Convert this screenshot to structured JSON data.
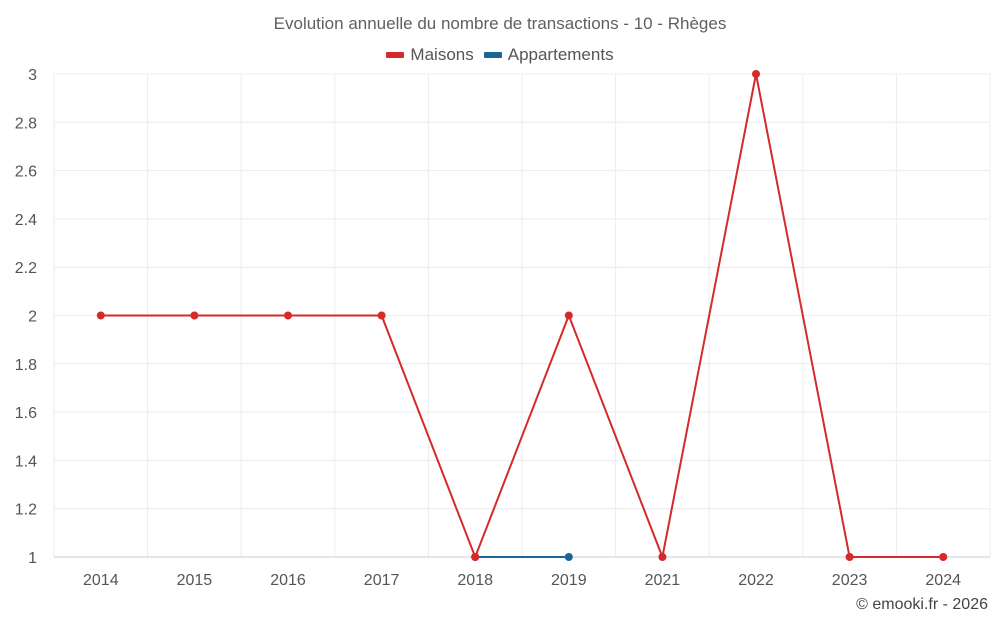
{
  "chart_data": {
    "type": "line",
    "title": "Evolution annuelle du nombre de transactions - 10 - Rhèges",
    "categories": [
      "2014",
      "2015",
      "2016",
      "2017",
      "2018",
      "2019",
      "2021",
      "2022",
      "2023",
      "2024"
    ],
    "series": [
      {
        "name": "Maisons",
        "color": "#d42a2a",
        "values": [
          2,
          2,
          2,
          2,
          1,
          2,
          1,
          3,
          1,
          1
        ]
      },
      {
        "name": "Appartements",
        "color": "#1a6496",
        "values": [
          null,
          null,
          null,
          null,
          1,
          1,
          null,
          null,
          null,
          null
        ]
      }
    ],
    "y_ticks": [
      "1",
      "1.2",
      "1.4",
      "1.6",
      "1.8",
      "2",
      "2.2",
      "2.4",
      "2.6",
      "2.8",
      "3"
    ],
    "ylim": [
      1,
      3
    ],
    "xlabel": "",
    "ylabel": "",
    "grid": true,
    "legend_position": "top-center"
  },
  "credit": "© emooki.fr - 2026"
}
